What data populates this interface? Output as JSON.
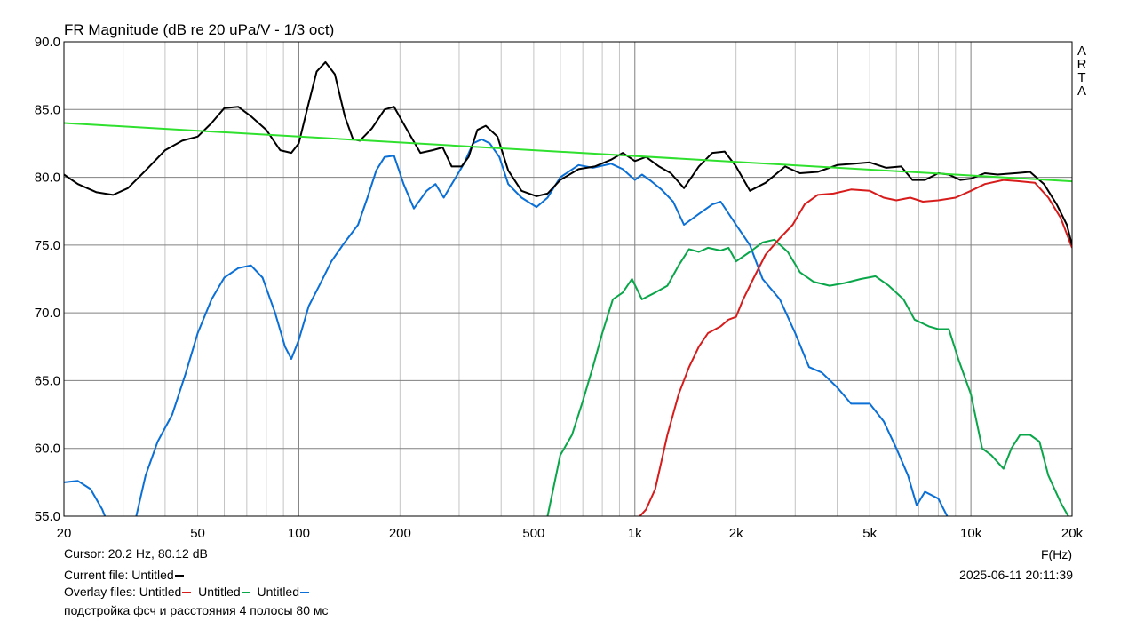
{
  "chart_data": {
    "type": "line",
    "title": "FR Magnitude (dB re 20 uPa/V - 1/3 oct)",
    "xlabel": "F(Hz)",
    "xscale": "log",
    "xlim": [
      20,
      20000
    ],
    "ylim": [
      55,
      90
    ],
    "grid": true,
    "x_ticks": [
      {
        "v": 20,
        "label": "20"
      },
      {
        "v": 50,
        "label": "50"
      },
      {
        "v": 100,
        "label": "100"
      },
      {
        "v": 200,
        "label": "200"
      },
      {
        "v": 500,
        "label": "500"
      },
      {
        "v": 1000,
        "label": "1k"
      },
      {
        "v": 2000,
        "label": "2k"
      },
      {
        "v": 5000,
        "label": "5k"
      },
      {
        "v": 10000,
        "label": "10k"
      },
      {
        "v": 20000,
        "label": "20k"
      }
    ],
    "y_ticks": [
      {
        "v": 90,
        "label": "90.0"
      },
      {
        "v": 85,
        "label": "85.0"
      },
      {
        "v": 80,
        "label": "80.0"
      },
      {
        "v": 75,
        "label": "75.0"
      },
      {
        "v": 70,
        "label": "70.0"
      },
      {
        "v": 65,
        "label": "65.0"
      },
      {
        "v": 60,
        "label": "60.0"
      },
      {
        "v": 55,
        "label": "55.0"
      }
    ],
    "series": [
      {
        "color": "#0a6fd6",
        "points": [
          [
            20,
            57.5
          ],
          [
            22,
            57.6
          ],
          [
            24,
            57.0
          ],
          [
            26,
            55.5
          ],
          [
            28,
            53.5
          ],
          [
            32,
            53.8
          ],
          [
            35,
            58.0
          ],
          [
            38,
            60.5
          ],
          [
            42,
            62.5
          ],
          [
            46,
            65.5
          ],
          [
            50,
            68.5
          ],
          [
            55,
            71.0
          ],
          [
            60,
            72.6
          ],
          [
            66,
            73.3
          ],
          [
            72,
            73.5
          ],
          [
            78,
            72.6
          ],
          [
            85,
            70.0
          ],
          [
            91,
            67.5
          ],
          [
            95,
            66.6
          ],
          [
            100,
            68.0
          ],
          [
            107,
            70.5
          ],
          [
            115,
            72.0
          ],
          [
            125,
            73.8
          ],
          [
            135,
            75.0
          ],
          [
            150,
            76.5
          ],
          [
            160,
            78.5
          ],
          [
            170,
            80.5
          ],
          [
            180,
            81.5
          ],
          [
            192,
            81.6
          ],
          [
            205,
            79.5
          ],
          [
            220,
            77.7
          ],
          [
            240,
            79.0
          ],
          [
            255,
            79.5
          ],
          [
            270,
            78.5
          ],
          [
            290,
            79.8
          ],
          [
            310,
            81.0
          ],
          [
            330,
            82.5
          ],
          [
            350,
            82.8
          ],
          [
            370,
            82.5
          ],
          [
            395,
            81.5
          ],
          [
            420,
            79.5
          ],
          [
            460,
            78.5
          ],
          [
            510,
            77.8
          ],
          [
            550,
            78.5
          ],
          [
            600,
            80.0
          ],
          [
            680,
            80.9
          ],
          [
            750,
            80.7
          ],
          [
            850,
            81.0
          ],
          [
            920,
            80.6
          ],
          [
            1000,
            79.8
          ],
          [
            1050,
            80.2
          ],
          [
            1120,
            79.7
          ],
          [
            1200,
            79.1
          ],
          [
            1300,
            78.2
          ],
          [
            1400,
            76.5
          ],
          [
            1550,
            77.3
          ],
          [
            1700,
            78.0
          ],
          [
            1800,
            78.2
          ],
          [
            2000,
            76.5
          ],
          [
            2200,
            75.0
          ],
          [
            2400,
            72.5
          ],
          [
            2700,
            71.0
          ],
          [
            3000,
            68.5
          ],
          [
            3300,
            66.0
          ],
          [
            3600,
            65.6
          ],
          [
            4000,
            64.5
          ],
          [
            4400,
            63.3
          ],
          [
            5000,
            63.3
          ],
          [
            5500,
            62.0
          ],
          [
            6000,
            60.0
          ],
          [
            6500,
            58.0
          ],
          [
            6900,
            55.8
          ],
          [
            7300,
            56.8
          ],
          [
            8000,
            56.3
          ],
          [
            8500,
            55.0
          ]
        ]
      },
      {
        "color": "#0aa64a",
        "points": [
          [
            550,
            55.0
          ],
          [
            600,
            59.5
          ],
          [
            650,
            61.0
          ],
          [
            700,
            63.5
          ],
          [
            750,
            66.0
          ],
          [
            800,
            68.5
          ],
          [
            860,
            71.0
          ],
          [
            920,
            71.5
          ],
          [
            980,
            72.5
          ],
          [
            1050,
            71.0
          ],
          [
            1150,
            71.5
          ],
          [
            1250,
            72.0
          ],
          [
            1350,
            73.5
          ],
          [
            1450,
            74.7
          ],
          [
            1550,
            74.5
          ],
          [
            1650,
            74.8
          ],
          [
            1800,
            74.6
          ],
          [
            1900,
            74.8
          ],
          [
            2000,
            73.8
          ],
          [
            2200,
            74.5
          ],
          [
            2400,
            75.2
          ],
          [
            2600,
            75.4
          ],
          [
            2850,
            74.5
          ],
          [
            3100,
            73.0
          ],
          [
            3400,
            72.3
          ],
          [
            3800,
            72.0
          ],
          [
            4200,
            72.2
          ],
          [
            4700,
            72.5
          ],
          [
            5200,
            72.7
          ],
          [
            5700,
            72.0
          ],
          [
            6300,
            71.0
          ],
          [
            6800,
            69.5
          ],
          [
            7500,
            69.0
          ],
          [
            8000,
            68.8
          ],
          [
            8600,
            68.8
          ],
          [
            9200,
            66.5
          ],
          [
            10000,
            64.0
          ],
          [
            10800,
            60.0
          ],
          [
            11500,
            59.5
          ],
          [
            12500,
            58.5
          ],
          [
            13200,
            60.0
          ],
          [
            14000,
            61.0
          ],
          [
            15000,
            61.0
          ],
          [
            16000,
            60.5
          ],
          [
            17000,
            58.0
          ],
          [
            18500,
            56.0
          ],
          [
            20000,
            54.5
          ]
        ]
      },
      {
        "color": "#d81b1b",
        "points": [
          [
            1000,
            54.6
          ],
          [
            1080,
            55.5
          ],
          [
            1150,
            57.0
          ],
          [
            1250,
            61.0
          ],
          [
            1350,
            64.0
          ],
          [
            1450,
            66.0
          ],
          [
            1550,
            67.5
          ],
          [
            1650,
            68.5
          ],
          [
            1800,
            69.0
          ],
          [
            1900,
            69.5
          ],
          [
            2000,
            69.7
          ],
          [
            2100,
            71.0
          ],
          [
            2250,
            72.5
          ],
          [
            2450,
            74.3
          ],
          [
            2700,
            75.5
          ],
          [
            2950,
            76.5
          ],
          [
            3200,
            78.0
          ],
          [
            3500,
            78.7
          ],
          [
            3900,
            78.8
          ],
          [
            4400,
            79.1
          ],
          [
            5000,
            79.0
          ],
          [
            5500,
            78.5
          ],
          [
            6000,
            78.3
          ],
          [
            6600,
            78.5
          ],
          [
            7200,
            78.2
          ],
          [
            8000,
            78.3
          ],
          [
            9000,
            78.5
          ],
          [
            10000,
            79.0
          ],
          [
            11000,
            79.5
          ],
          [
            12500,
            79.8
          ],
          [
            14000,
            79.7
          ],
          [
            15500,
            79.6
          ],
          [
            17000,
            78.5
          ],
          [
            18500,
            77.0
          ],
          [
            20000,
            74.8
          ]
        ]
      },
      {
        "color": "#000000",
        "points": [
          [
            20,
            80.2
          ],
          [
            22,
            79.5
          ],
          [
            25,
            78.9
          ],
          [
            28,
            78.7
          ],
          [
            31,
            79.2
          ],
          [
            35,
            80.5
          ],
          [
            40,
            82.0
          ],
          [
            45,
            82.7
          ],
          [
            50,
            83.0
          ],
          [
            55,
            84.0
          ],
          [
            60,
            85.1
          ],
          [
            66,
            85.2
          ],
          [
            72,
            84.5
          ],
          [
            80,
            83.5
          ],
          [
            88,
            82.0
          ],
          [
            95,
            81.8
          ],
          [
            100,
            82.5
          ],
          [
            107,
            85.5
          ],
          [
            113,
            87.8
          ],
          [
            120,
            88.5
          ],
          [
            128,
            87.6
          ],
          [
            137,
            84.5
          ],
          [
            145,
            82.8
          ],
          [
            152,
            82.7
          ],
          [
            165,
            83.6
          ],
          [
            180,
            85.0
          ],
          [
            192,
            85.2
          ],
          [
            210,
            83.5
          ],
          [
            230,
            81.8
          ],
          [
            250,
            82.0
          ],
          [
            268,
            82.2
          ],
          [
            285,
            80.8
          ],
          [
            305,
            80.8
          ],
          [
            320,
            81.5
          ],
          [
            340,
            83.5
          ],
          [
            360,
            83.8
          ],
          [
            390,
            83.0
          ],
          [
            420,
            80.5
          ],
          [
            460,
            79.0
          ],
          [
            510,
            78.6
          ],
          [
            550,
            78.8
          ],
          [
            600,
            79.8
          ],
          [
            680,
            80.6
          ],
          [
            760,
            80.8
          ],
          [
            850,
            81.3
          ],
          [
            920,
            81.8
          ],
          [
            1000,
            81.2
          ],
          [
            1080,
            81.5
          ],
          [
            1180,
            80.8
          ],
          [
            1280,
            80.3
          ],
          [
            1400,
            79.2
          ],
          [
            1550,
            80.8
          ],
          [
            1700,
            81.8
          ],
          [
            1850,
            81.9
          ],
          [
            2000,
            80.8
          ],
          [
            2200,
            79.0
          ],
          [
            2450,
            79.6
          ],
          [
            2800,
            80.8
          ],
          [
            3100,
            80.3
          ],
          [
            3500,
            80.4
          ],
          [
            4000,
            80.9
          ],
          [
            4500,
            81.0
          ],
          [
            5000,
            81.1
          ],
          [
            5600,
            80.7
          ],
          [
            6200,
            80.8
          ],
          [
            6700,
            79.8
          ],
          [
            7300,
            79.8
          ],
          [
            8000,
            80.3
          ],
          [
            8600,
            80.2
          ],
          [
            9300,
            79.8
          ],
          [
            10000,
            79.9
          ],
          [
            11000,
            80.3
          ],
          [
            12000,
            80.2
          ],
          [
            13500,
            80.3
          ],
          [
            15000,
            80.4
          ],
          [
            16500,
            79.5
          ],
          [
            18000,
            78.0
          ],
          [
            19300,
            76.5
          ],
          [
            20000,
            75.0
          ]
        ]
      },
      {
        "color": "#2fe02f",
        "points": [
          [
            20,
            84.0
          ],
          [
            20000,
            79.7
          ]
        ]
      }
    ]
  },
  "watermark": "ARTA",
  "footer": {
    "cursor": "Cursor: 20.2 Hz, 80.12 dB",
    "current_file": "Current file: Untitled",
    "overlay_label": "Overlay files: Untitled",
    "overlay_2": "Untitled",
    "overlay_3": "Untitled",
    "note": "подстройка фсч и расстояния 4 полосы 80 мс",
    "datetime": "2025-06-11   20:11:39"
  }
}
